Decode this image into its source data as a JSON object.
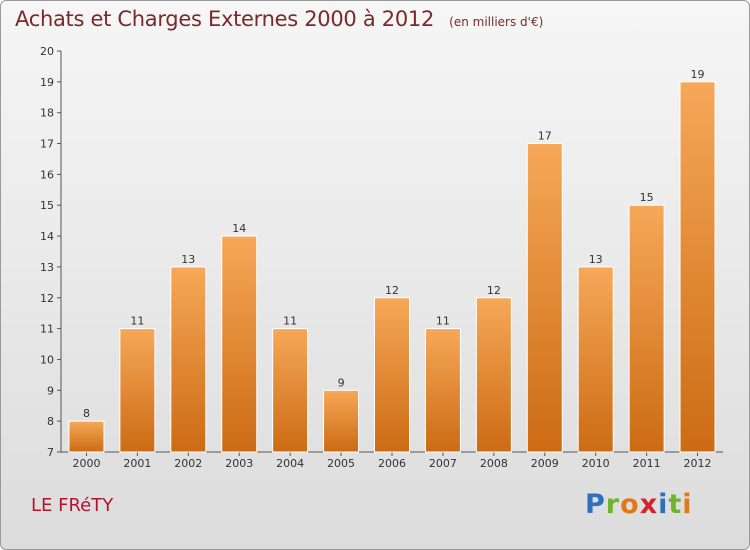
{
  "title": "Achats et Charges Externes 2000 à 2012",
  "subtitle": "(en milliers d'€)",
  "commune": "LE FRéTY",
  "logo": [
    "P",
    "r",
    "o",
    "x",
    "i",
    "t",
    "i"
  ],
  "colors": {
    "bar_top": "#f6a858",
    "bar_bottom": "#cc6b14",
    "title": "#7a2a2a",
    "commune": "#b5122c"
  },
  "chart_data": {
    "type": "bar",
    "categories": [
      "2000",
      "2001",
      "2002",
      "2003",
      "2004",
      "2005",
      "2006",
      "2007",
      "2008",
      "2009",
      "2010",
      "2011",
      "2012"
    ],
    "values": [
      8,
      11,
      13,
      14,
      11,
      9,
      12,
      11,
      12,
      17,
      13,
      15,
      19
    ],
    "ylim": [
      7,
      20
    ],
    "yticks": [
      7,
      8,
      9,
      10,
      11,
      12,
      13,
      14,
      15,
      16,
      17,
      18,
      19,
      20
    ],
    "xlabel": "",
    "ylabel": "",
    "grid": false
  }
}
